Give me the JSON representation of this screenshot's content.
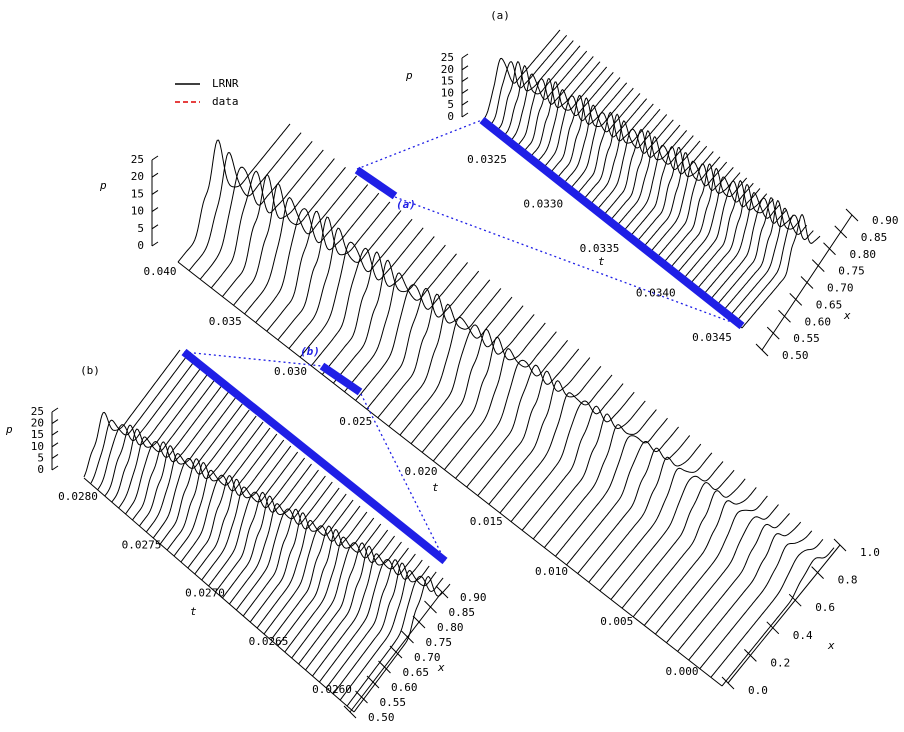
{
  "legend": [
    {
      "label": "LRNR"
    },
    {
      "label": "data"
    }
  ],
  "main": {
    "p_label": "p",
    "t_label": "t",
    "x_label": "x",
    "p_ticks": [
      "0",
      "5",
      "10",
      "15",
      "20",
      "25"
    ],
    "t_ticks": [
      "0.040",
      "0.035",
      "0.030",
      "0.025",
      "0.020",
      "0.015",
      "0.010",
      "0.005",
      "0.000"
    ],
    "x_ticks": [
      "0.0",
      "0.2",
      "0.4",
      "0.6",
      "0.8",
      "1.0"
    ],
    "markers": [
      "(a)",
      "(b)"
    ]
  },
  "panel_a": {
    "title": "(a)",
    "p_label": "p",
    "t_label": "t",
    "x_label": "x",
    "p_ticks": [
      "0",
      "5",
      "10",
      "15",
      "20",
      "25"
    ],
    "t_ticks": [
      "0.0325",
      "0.0330",
      "0.0335",
      "0.0340",
      "0.0345"
    ],
    "x_ticks": [
      "0.50",
      "0.55",
      "0.60",
      "0.65",
      "0.70",
      "0.75",
      "0.80",
      "0.85",
      "0.90"
    ]
  },
  "panel_b": {
    "title": "(b)",
    "p_label": "p",
    "t_label": "t",
    "x_label": "x",
    "p_ticks": [
      "0",
      "5",
      "10",
      "15",
      "20",
      "25"
    ],
    "t_ticks": [
      "0.0280",
      "0.0275",
      "0.0270",
      "0.0265",
      "0.0260"
    ],
    "x_ticks": [
      "0.50",
      "0.55",
      "0.60",
      "0.65",
      "0.70",
      "0.75",
      "0.80",
      "0.85",
      "0.90"
    ]
  }
}
